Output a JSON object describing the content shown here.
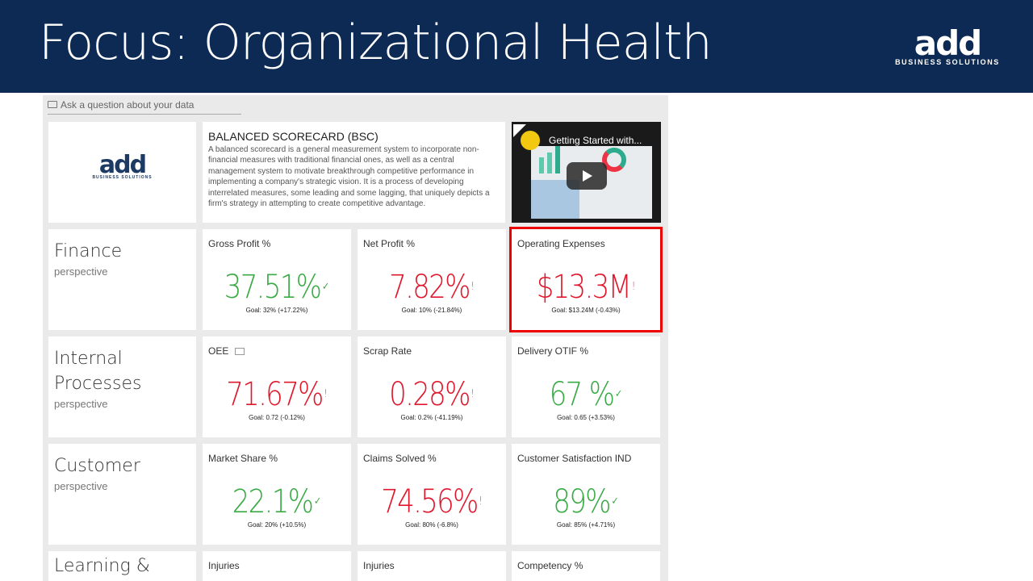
{
  "header": {
    "title": "Focus: Organizational Health",
    "logo_mark": "add",
    "logo_sub": "BUSINESS SOLUTIONS"
  },
  "qa": {
    "placeholder": "Ask a question about your data"
  },
  "intro": {
    "logo_mark": "add",
    "logo_sub": "BUSINESS SOLUTIONS",
    "heading": "BALANCED SCORECARD (BSC)",
    "body": "A balanced scorecard is a general measurement system to incorporate non-financial measures with traditional financial ones, as well as a central management system to motivate breakthrough competitive performance in implementing a company's strategic vision. It is a process of developing interrelated measures, some leading and some lagging, that uniquely depicts a firm's strategy in attempting to create competitive advantage.",
    "video_title": "Getting Started with..."
  },
  "colors": {
    "good": "#3aaa45",
    "bad": "#e0182d",
    "highlight": "#e00000"
  },
  "rows": [
    {
      "perspective": "Finance",
      "sub": "perspective",
      "kpis": [
        {
          "title": "Gross Profit %",
          "value": "37.51%",
          "status": "good",
          "goal": "Goal: 32% (+17.22%)"
        },
        {
          "title": "Net Profit %",
          "value": "7.82%",
          "status": "bad",
          "goal": "Goal: 10% (-21.84%)"
        },
        {
          "title": "Operating Expenses",
          "value": "$13.3M",
          "status": "bad",
          "goal": "Goal: $13.24M (-0.43%)",
          "selected": true
        }
      ]
    },
    {
      "perspective": "Internal Processes",
      "sub": "perspective",
      "kpis": [
        {
          "title": "OEE",
          "value": "71.67%",
          "status": "bad",
          "goal": "Goal: 0.72 (-0.12%)",
          "comment": true
        },
        {
          "title": "Scrap Rate",
          "value": "0.28%",
          "status": "bad",
          "goal": "Goal: 0.2% (-41.19%)"
        },
        {
          "title": "Delivery OTIF %",
          "value": "67 %",
          "status": "good",
          "goal": "Goal: 0.65 (+3.53%)"
        }
      ]
    },
    {
      "perspective": "Customer",
      "sub": "perspective",
      "kpis": [
        {
          "title": "Market Share %",
          "value": "22.1%",
          "status": "good",
          "goal": "Goal: 20% (+10.5%)"
        },
        {
          "title": "Claims Solved %",
          "value": "74.56%",
          "status": "bad",
          "goal": "Goal: 80% (-6.8%)"
        },
        {
          "title": "Customer Satisfaction IND",
          "value": "89%",
          "status": "good",
          "goal": "Goal: 85% (+4.71%)"
        }
      ]
    },
    {
      "perspective": "Learning &",
      "sub": "",
      "kpis": [
        {
          "title": "Injuries",
          "value": "",
          "status": "good",
          "goal": ""
        },
        {
          "title": "Injuries",
          "value": "",
          "status": "good",
          "goal": ""
        },
        {
          "title": "Competency %",
          "value": "",
          "status": "good",
          "goal": ""
        }
      ]
    }
  ]
}
